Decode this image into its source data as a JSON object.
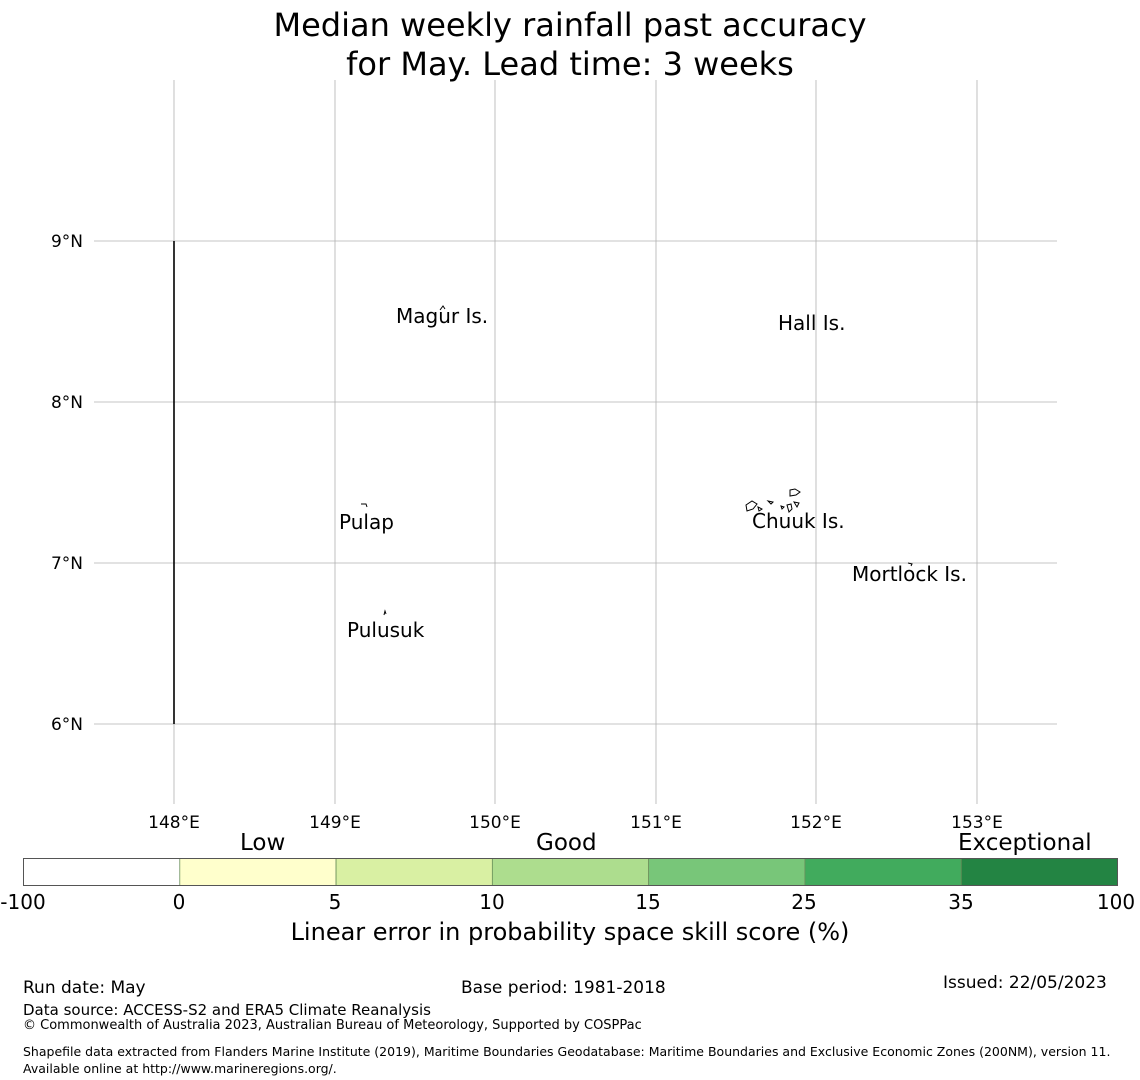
{
  "title": {
    "line1": "Median weekly rainfall past accuracy",
    "line2": "for May. Lead time: 3 weeks"
  },
  "map": {
    "lon_ticks": [
      "148°E",
      "149°E",
      "150°E",
      "151°E",
      "152°E",
      "153°E"
    ],
    "lat_ticks": [
      "9°N",
      "8°N",
      "7°N",
      "6°N"
    ],
    "places": [
      "Magur Is.",
      "Hall Is.",
      "Pulap",
      "Chuuk Is.",
      "Mortlock Is.",
      "Pulusuk"
    ]
  },
  "colorbar": {
    "categories": [
      "Low",
      "Good",
      "Exceptional"
    ],
    "ticks": [
      "-100",
      "0",
      "5",
      "10",
      "15",
      "25",
      "35",
      "100"
    ],
    "colors": [
      "#ffffff",
      "#ffffcc",
      "#d9f0a3",
      "#addd8e",
      "#78c679",
      "#41ab5d",
      "#238443"
    ],
    "label": "Linear error in probability space skill score (%)"
  },
  "footer": {
    "run_date": "Run date: May",
    "base_period": "Base period: 1981-2018",
    "issued": "Issued: 22/05/2023",
    "data_source": "Data source: ACCESS-S2 and ERA5 Climate Reanalysis",
    "copyright": "© Commonwealth of Australia 2023, Australian Bureau of Meteorology, Supported by COSPPac",
    "shapefile": "Shapefile data extracted from Flanders Marine Institute (2019), Maritime Boundaries Geodatabase: Maritime Boundaries and Exclusive Economic Zones (200NM), version 11. Available online at http://www.marineregions.org/."
  }
}
